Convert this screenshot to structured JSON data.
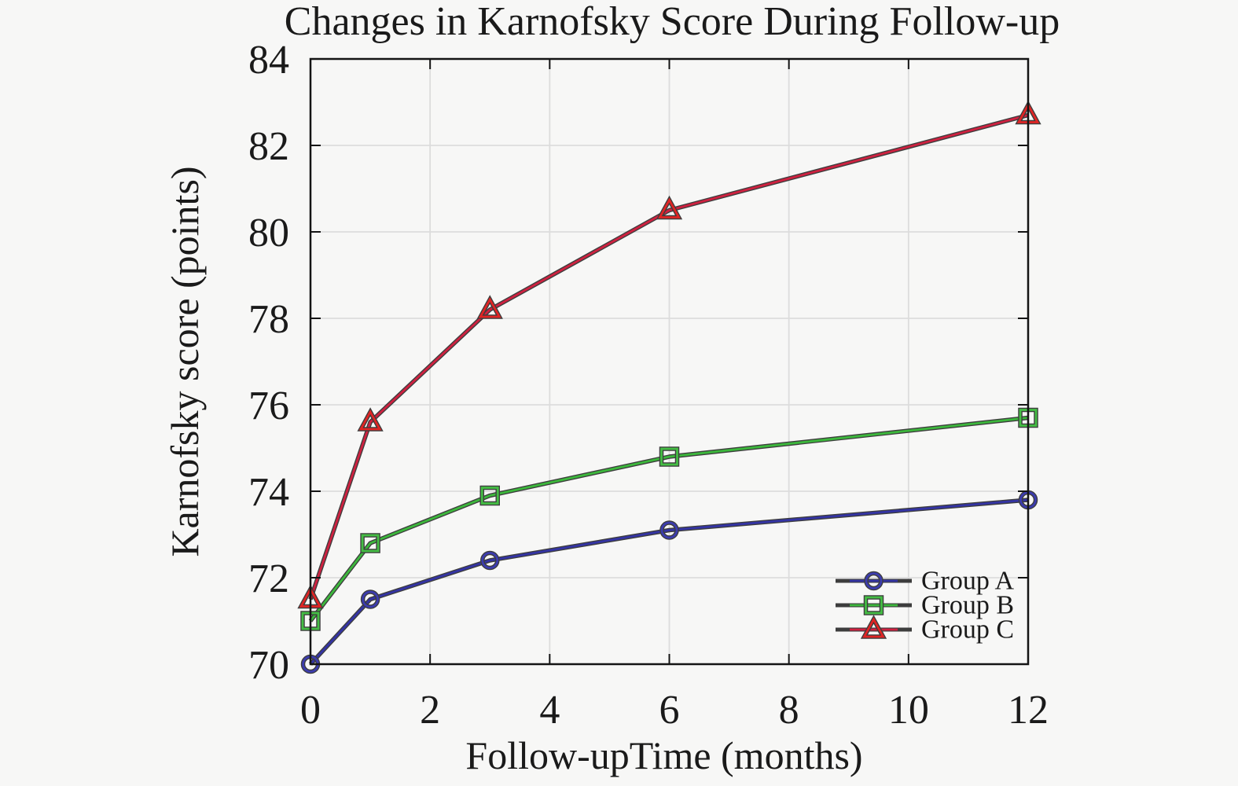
{
  "chart_data": {
    "type": "line",
    "title": "Changes in Karnofsky Score During Follow-up",
    "xlabel": "Follow-upTime (months)",
    "ylabel": "Karnofsky score (points)",
    "x": [
      0,
      1,
      3,
      6,
      12
    ],
    "xticks": [
      0,
      2,
      4,
      6,
      8,
      10,
      12
    ],
    "yticks": [
      70,
      72,
      74,
      76,
      78,
      80,
      82,
      84
    ],
    "xlim": [
      0,
      12
    ],
    "ylim": [
      70,
      84
    ],
    "grid": true,
    "legend_position": "lower right",
    "series": [
      {
        "name": "Group A",
        "marker": "circle",
        "color": "#3434a4",
        "marker_color": "#3c3cae",
        "values": [
          70.0,
          71.5,
          72.4,
          73.1,
          73.8
        ]
      },
      {
        "name": "Group B",
        "marker": "square",
        "color": "#3cb83c",
        "marker_color": "#44bd44",
        "values": [
          71.0,
          72.8,
          73.9,
          74.8,
          75.7
        ]
      },
      {
        "name": "Group C",
        "marker": "triangle",
        "color": "#cf2140",
        "marker_color": "#e02424",
        "values": [
          71.5,
          75.6,
          78.2,
          80.5,
          82.7
        ]
      }
    ]
  },
  "colors": {
    "background": "#f7f7f6",
    "plot_background": "#f7f7f6",
    "grid": "#dcdcdc",
    "axis": "#141414",
    "line_outline": "#3d3d3d",
    "text": "#1a1a1a"
  }
}
